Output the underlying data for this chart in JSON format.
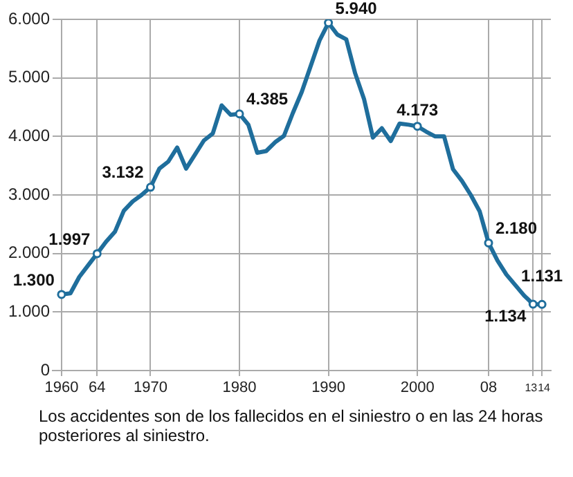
{
  "chart_data": {
    "type": "line",
    "x": [
      1960,
      1961,
      1962,
      1963,
      1964,
      1965,
      1966,
      1967,
      1968,
      1969,
      1970,
      1971,
      1972,
      1973,
      1974,
      1975,
      1976,
      1977,
      1978,
      1979,
      1980,
      1981,
      1982,
      1983,
      1984,
      1985,
      1986,
      1987,
      1988,
      1989,
      1990,
      1991,
      1992,
      1993,
      1994,
      1995,
      1996,
      1997,
      1998,
      1999,
      2000,
      2001,
      2002,
      2003,
      2004,
      2005,
      2006,
      2007,
      2008,
      2009,
      2010,
      2011,
      2012,
      2013,
      2014
    ],
    "series": [
      {
        "color": "#1f6e9c",
        "values": [
          1300,
          1320,
          1600,
          1800,
          1997,
          2200,
          2370,
          2730,
          2890,
          3000,
          3132,
          3450,
          3570,
          3810,
          3450,
          3690,
          3930,
          4050,
          4530,
          4370,
          4385,
          4200,
          3720,
          3750,
          3900,
          4010,
          4400,
          4760,
          5200,
          5640,
          5940,
          5740,
          5660,
          5080,
          4640,
          3980,
          4140,
          3920,
          4220,
          4200,
          4173,
          4080,
          4000,
          4000,
          3440,
          3240,
          3000,
          2720,
          2180,
          1880,
          1640,
          1460,
          1280,
          1134,
          1131
        ],
        "value_labels": [
          "1.300",
          null,
          null,
          null,
          "1.997",
          null,
          null,
          null,
          null,
          null,
          "3.132",
          null,
          null,
          null,
          null,
          null,
          null,
          null,
          null,
          null,
          "4.385",
          null,
          null,
          null,
          null,
          null,
          null,
          null,
          null,
          null,
          "5.940",
          null,
          null,
          null,
          null,
          null,
          null,
          null,
          null,
          null,
          "4.173",
          null,
          null,
          null,
          null,
          null,
          null,
          null,
          "2.180",
          null,
          null,
          null,
          null,
          "1.134",
          "1.131"
        ]
      }
    ],
    "xlim": [
      1959,
      2015
    ],
    "xticks": [
      {
        "value": 1960,
        "label": "1960"
      },
      {
        "value": 1964,
        "label": "64"
      },
      {
        "value": 1970,
        "label": "1970"
      },
      {
        "value": 1980,
        "label": "1980"
      },
      {
        "value": 1990,
        "label": "1990"
      },
      {
        "value": 2000,
        "label": "2000"
      },
      {
        "value": 2008,
        "label": "08"
      },
      {
        "value": 2013,
        "label": "13"
      },
      {
        "value": 2014,
        "label": "14"
      }
    ],
    "ylim": [
      0,
      6000
    ],
    "yticks": [
      0,
      {
        "value": 1000,
        "label": "1.000"
      },
      {
        "value": 2000,
        "label": "2.000"
      },
      {
        "value": 3000,
        "label": "3.000"
      },
      {
        "value": 4000,
        "label": "4.000"
      },
      {
        "value": 5000,
        "label": "5.000"
      },
      {
        "value": 6000,
        "label": "6.000"
      }
    ],
    "grid": true,
    "legend": false,
    "line_style": "solid",
    "annotations": [
      "Los accidentes son de los fallecidos en el siniestro o en las 24 horas posteriores al siniestro."
    ]
  }
}
